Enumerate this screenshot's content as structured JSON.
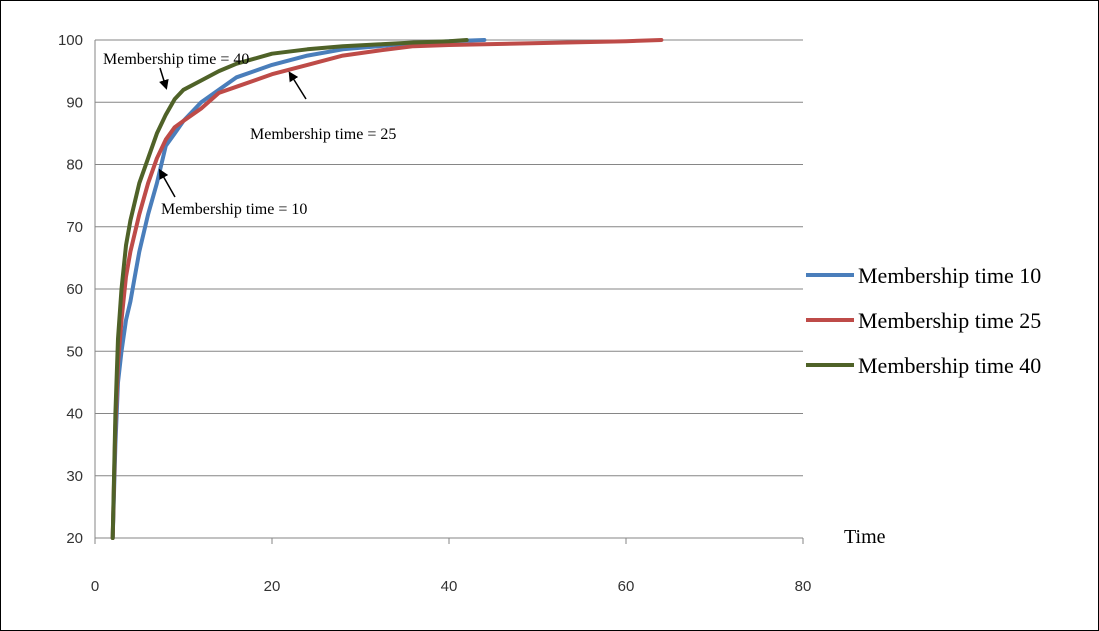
{
  "chart_data": {
    "type": "line",
    "title": "",
    "xlabel": "Time",
    "ylabel": "",
    "xlim": [
      0,
      80
    ],
    "ylim": [
      20,
      100
    ],
    "xticks": [
      "0",
      "20",
      "40",
      "60",
      "80"
    ],
    "yticks": [
      "20",
      "30",
      "40",
      "50",
      "60",
      "70",
      "80",
      "90",
      "100"
    ],
    "grid": "horizontal",
    "legend": "right",
    "series": [
      {
        "name": "Membership time 10",
        "color": "#4A7EBB",
        "x": [
          2,
          2.3,
          2.6,
          3,
          3.5,
          4,
          4.5,
          5,
          6,
          7,
          8,
          9,
          10,
          12,
          14,
          16,
          18,
          20,
          24,
          28,
          32,
          36,
          40,
          44
        ],
        "y": [
          20,
          35,
          45,
          50,
          55,
          58,
          62,
          66,
          72,
          77,
          83,
          85,
          87,
          90,
          92,
          94,
          95,
          96,
          97.5,
          98.5,
          99,
          99.5,
          99.8,
          100
        ]
      },
      {
        "name": "Membership time 25",
        "color": "#BE4B48",
        "x": [
          2,
          2.3,
          2.6,
          3,
          3.5,
          4,
          5,
          6,
          7,
          8,
          9,
          10,
          12,
          14,
          16,
          18,
          20,
          24,
          28,
          32,
          36,
          40,
          50,
          60,
          64
        ],
        "y": [
          20,
          38,
          48,
          55,
          62,
          66,
          72,
          77,
          81,
          84,
          86,
          87,
          89,
          91.5,
          92.5,
          93.5,
          94.5,
          96,
          97.5,
          98.3,
          99,
          99.2,
          99.5,
          99.8,
          100
        ]
      },
      {
        "name": "Membership time 40",
        "color": "#4F6228",
        "x": [
          2,
          2.3,
          2.6,
          3,
          3.5,
          4,
          5,
          6,
          7,
          8,
          9,
          10,
          12,
          14,
          16,
          18,
          20,
          24,
          28,
          32,
          36,
          40,
          42
        ],
        "y": [
          20,
          40,
          52,
          60,
          67,
          71,
          77,
          81,
          85,
          88,
          90.5,
          92,
          93.5,
          95,
          96.2,
          97,
          97.8,
          98.5,
          99,
          99.3,
          99.6,
          99.8,
          100
        ]
      }
    ],
    "annotations": [
      {
        "text": "Membership time = 40",
        "target": [
          8.5,
          91
        ]
      },
      {
        "text": "Membership time = 25",
        "target": [
          22,
          96
        ]
      },
      {
        "text": "Membership time = 10",
        "target": [
          7,
          80
        ]
      }
    ]
  }
}
